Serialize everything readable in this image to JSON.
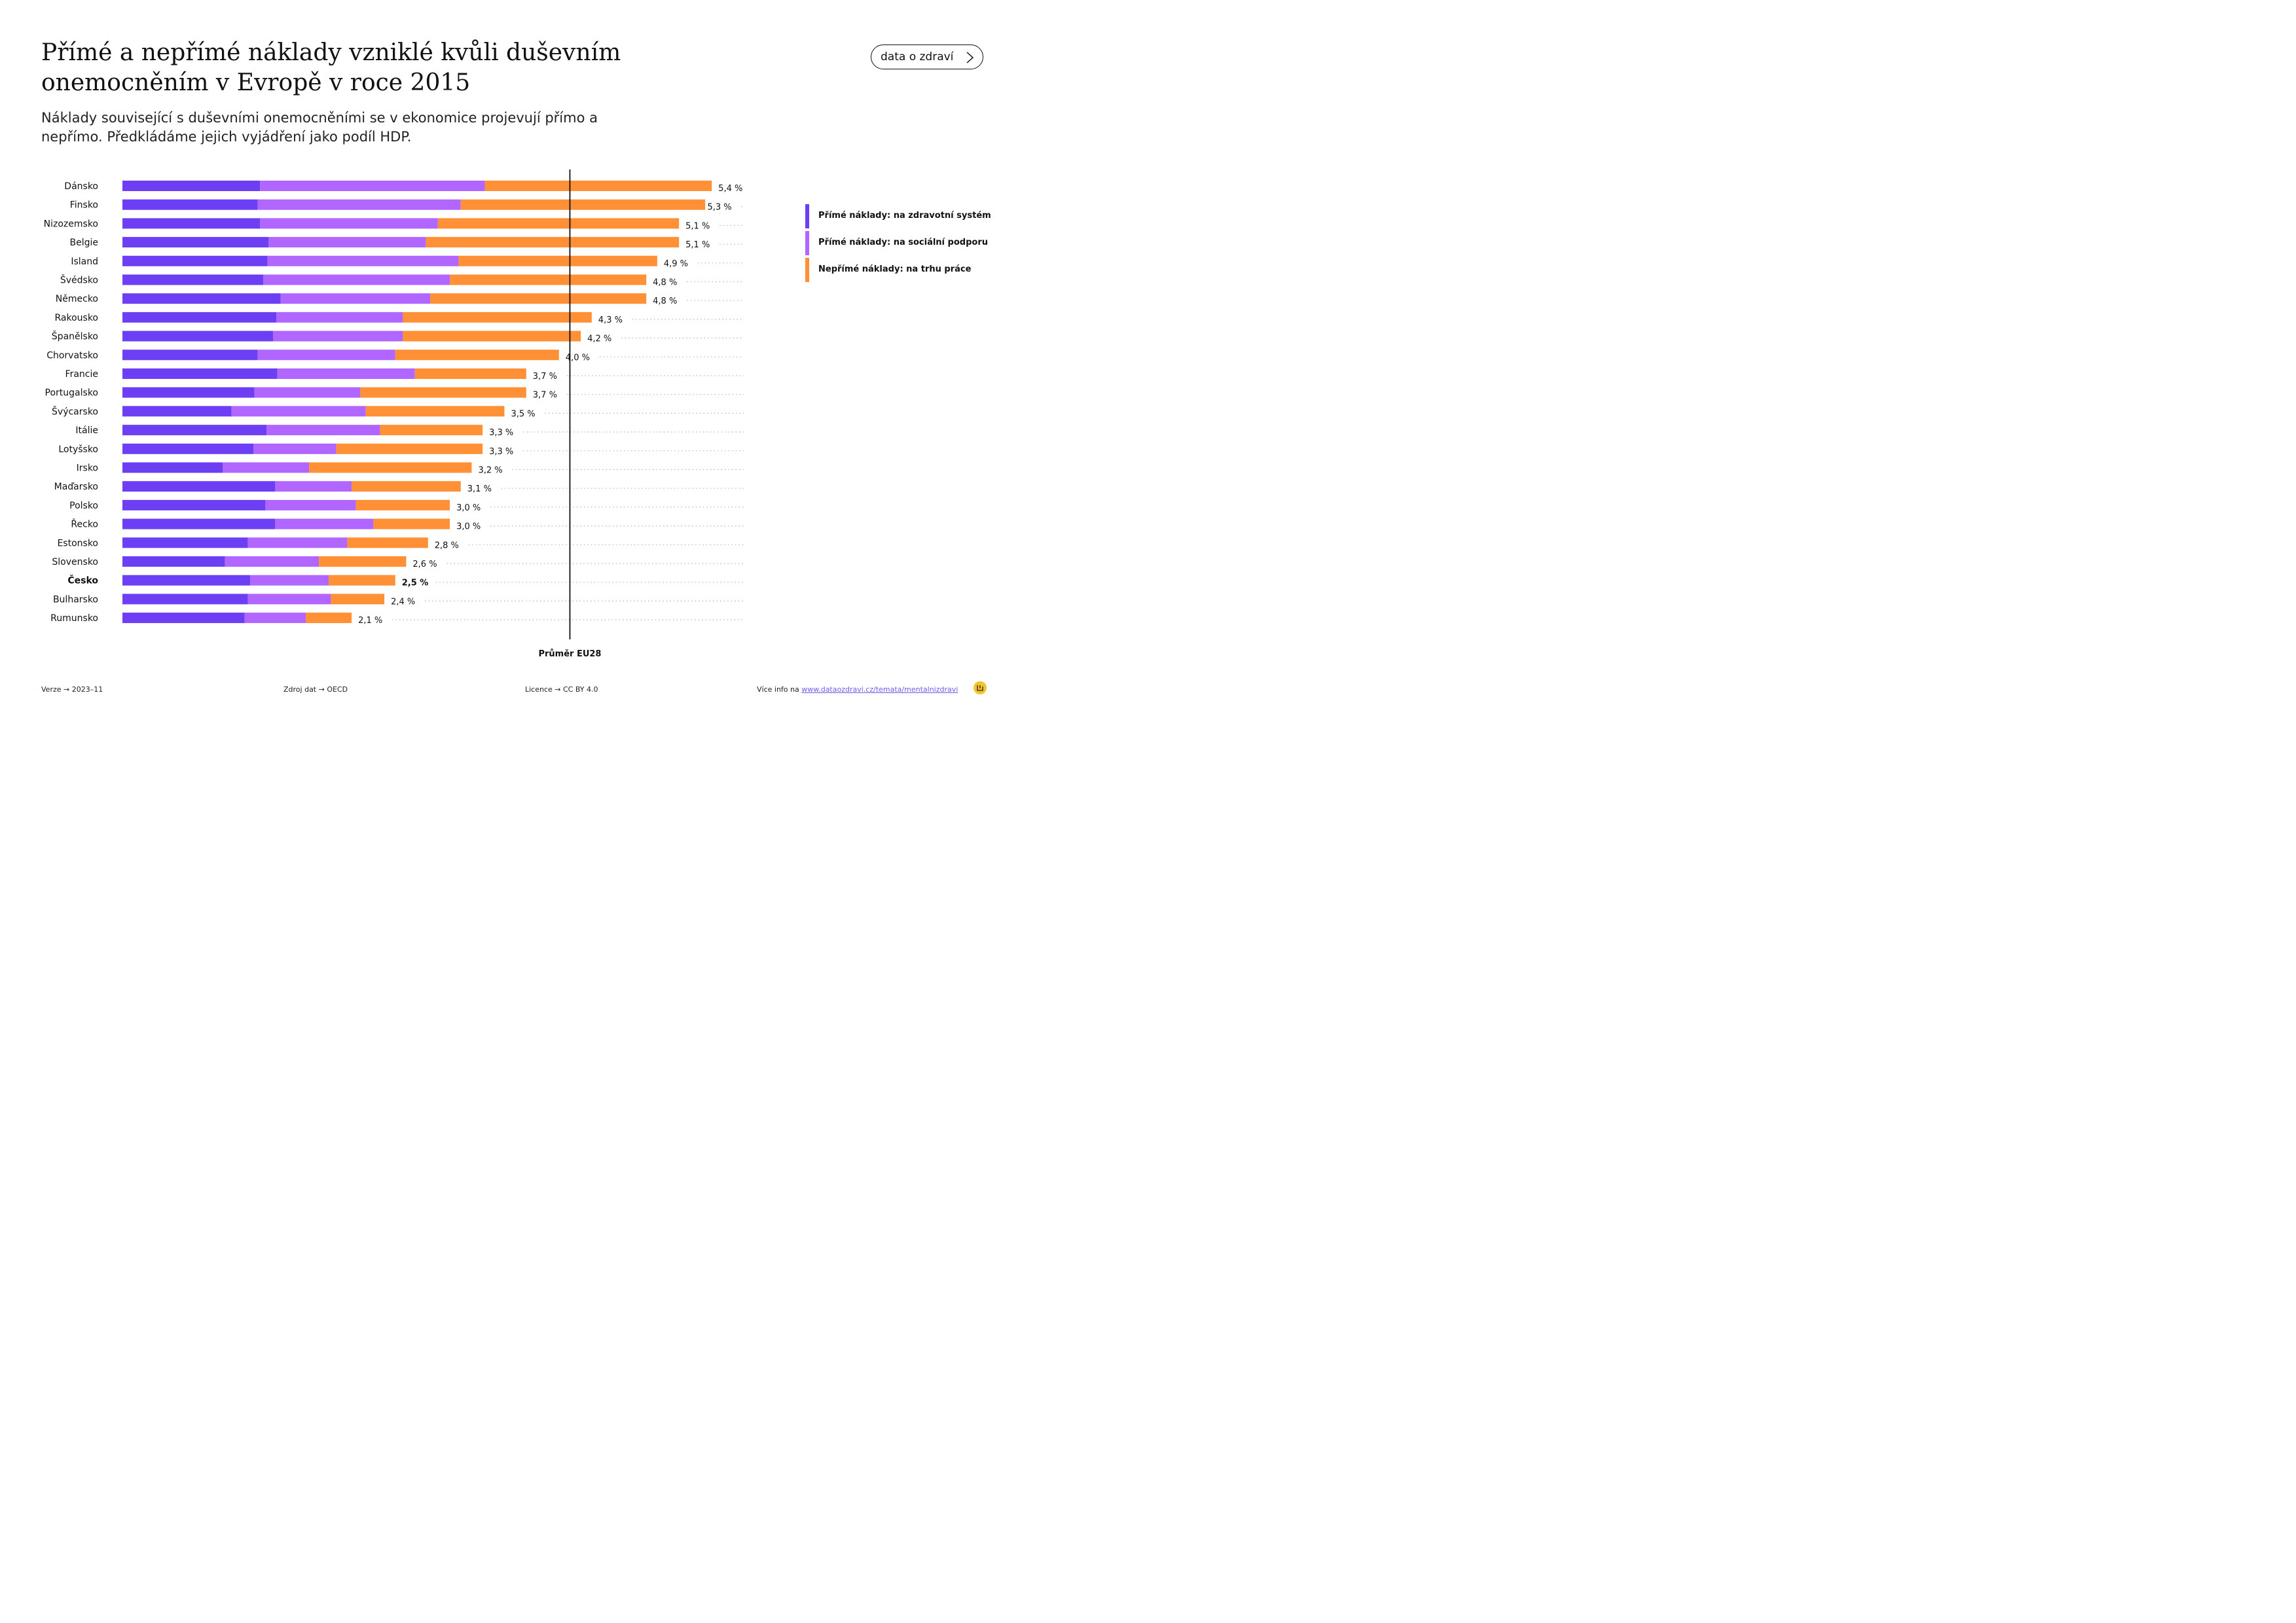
{
  "header": {
    "title": "Přímé a nepřímé náklady vzniklé kvůli duševním onemocněním v Evropě v roce 2015",
    "subtitle": "Náklady související s duševními onemocněními se v ekonomice projevují přímo a nepřímo. Předkládáme jejich vyjádření jako podíl HDP.",
    "brand_button": "data o zdraví"
  },
  "legend": [
    {
      "label": "Přímé náklady: na zdravotní systém",
      "color": "#6c3ff5"
    },
    {
      "label": "Přímé náklady: na sociální podporu",
      "color": "#b166ff"
    },
    {
      "label": "Nepřímé náklady: na trhu práce",
      "color": "#ff9035"
    }
  ],
  "footer": {
    "version": "Verze → 2023–11",
    "source": "Zdroj dat → OECD",
    "license": "Licence → CC BY 4.0",
    "more_info_prefix": "Více info na ",
    "more_info_link": "www.dataozdravi.cz/temata/mentalnizdravi"
  },
  "chart_data": {
    "type": "bar",
    "orientation": "horizontal",
    "stacked": true,
    "unit": "% HDP",
    "categories": [
      "Dánsko",
      "Finsko",
      "Nizozemsko",
      "Belgie",
      "Island",
      "Švédsko",
      "Německo",
      "Rakousko",
      "Španělsko",
      "Chorvatsko",
      "Francie",
      "Portugalsko",
      "Švýcarsko",
      "Itálie",
      "Lotyšsko",
      "Irsko",
      "Maďarsko",
      "Polsko",
      "Řecko",
      "Estonsko",
      "Slovensko",
      "Česko",
      "Bulharsko",
      "Rumunsko"
    ],
    "highlight": "Česko",
    "series": [
      {
        "name": "Přímé náklady: na zdravotní systém",
        "color": "#6c3ff5",
        "values": [
          1.26,
          1.24,
          1.26,
          1.34,
          1.33,
          1.29,
          1.45,
          1.41,
          1.38,
          1.24,
          1.42,
          1.21,
          1.0,
          1.32,
          1.2,
          0.92,
          1.4,
          1.31,
          1.4,
          1.15,
          0.94,
          1.17,
          1.15,
          1.12
        ]
      },
      {
        "name": "Přímé náklady: na sociální podporu",
        "color": "#b166ff",
        "values": [
          2.06,
          1.86,
          1.63,
          1.44,
          1.75,
          1.71,
          1.37,
          1.16,
          1.19,
          1.26,
          1.26,
          0.97,
          1.23,
          1.04,
          0.76,
          0.79,
          0.7,
          0.83,
          0.9,
          0.91,
          0.86,
          0.72,
          0.76,
          0.56
        ]
      },
      {
        "name": "Nepřímé náklady: na trhu práce",
        "color": "#ff9035",
        "values": [
          2.08,
          2.24,
          2.21,
          2.32,
          1.82,
          1.8,
          1.98,
          1.73,
          1.63,
          1.5,
          1.02,
          1.52,
          1.27,
          0.94,
          1.34,
          1.49,
          1.0,
          0.86,
          0.7,
          0.74,
          0.8,
          0.61,
          0.49,
          0.42
        ]
      }
    ],
    "totals": [
      5.4,
      5.3,
      5.1,
      5.1,
      4.9,
      4.8,
      4.8,
      4.3,
      4.2,
      4.0,
      3.7,
      3.7,
      3.5,
      3.3,
      3.3,
      3.2,
      3.1,
      3.0,
      3.0,
      2.8,
      2.6,
      2.5,
      2.4,
      2.1
    ],
    "total_labels": [
      "5,4 %",
      "5,3 %",
      "5,1 %",
      "5,1 %",
      "4,9 %",
      "4,8 %",
      "4,8 %",
      "4,3 %",
      "4,2 %",
      "4,0 %",
      "3,7 %",
      "3,7 %",
      "3,5 %",
      "3,3 %",
      "3,3 %",
      "3,2 %",
      "3,1 %",
      "3,0 %",
      "3,0 %",
      "2,8 %",
      "2,6 %",
      "2,5 %",
      "2,4 %",
      "2,1 %"
    ],
    "reference_line": {
      "label": "Průměr EU28",
      "value": 4.1
    },
    "xlim": [
      0,
      5.4
    ],
    "grid": false
  }
}
